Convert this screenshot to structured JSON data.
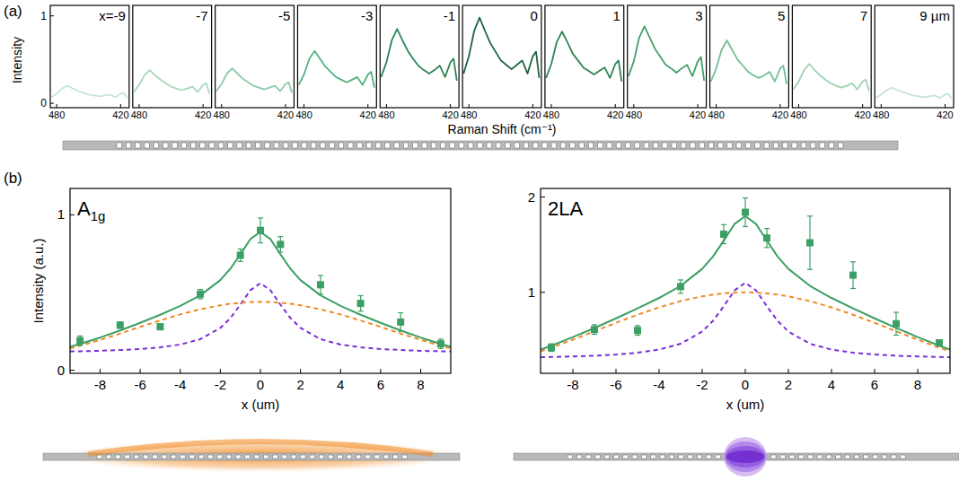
{
  "chart_data": [
    {
      "type": "line",
      "label": "(a)",
      "ylabel": "Intensity",
      "xlabel": "Raman Shift (cm⁻¹)",
      "xlim": [
        486,
        412
      ],
      "ylim": [
        -0.05,
        1.12
      ],
      "xticks": [
        480,
        420
      ],
      "yticks": [
        0,
        1
      ],
      "x": [
        485,
        480,
        475,
        470,
        465,
        460,
        455,
        450,
        445,
        440,
        435,
        430,
        425,
        420,
        417,
        414
      ],
      "series": [
        {
          "name": "x=-9",
          "color": "#c6e5d2",
          "values": [
            0.07,
            0.11,
            0.17,
            0.2,
            0.17,
            0.14,
            0.12,
            0.1,
            0.09,
            0.08,
            0.09,
            0.1,
            0.07,
            0.11,
            0.12,
            0.06
          ]
        },
        {
          "name": "-7",
          "color": "#a9d8bc",
          "values": [
            0.13,
            0.21,
            0.32,
            0.38,
            0.32,
            0.27,
            0.23,
            0.19,
            0.17,
            0.15,
            0.17,
            0.19,
            0.13,
            0.21,
            0.23,
            0.11
          ]
        },
        {
          "name": "-5",
          "color": "#8ccba6",
          "values": [
            0.14,
            0.22,
            0.34,
            0.4,
            0.34,
            0.28,
            0.24,
            0.2,
            0.18,
            0.16,
            0.18,
            0.2,
            0.14,
            0.22,
            0.24,
            0.12
          ]
        },
        {
          "name": "-3",
          "color": "#56b180",
          "values": [
            0.21,
            0.33,
            0.51,
            0.6,
            0.51,
            0.42,
            0.36,
            0.3,
            0.27,
            0.24,
            0.27,
            0.3,
            0.21,
            0.33,
            0.36,
            0.18
          ]
        },
        {
          "name": "-1",
          "color": "#2c8553",
          "values": [
            0.3,
            0.47,
            0.72,
            0.85,
            0.72,
            0.6,
            0.51,
            0.43,
            0.38,
            0.34,
            0.38,
            0.43,
            0.3,
            0.47,
            0.51,
            0.26
          ]
        },
        {
          "name": "0",
          "color": "#1d6440",
          "values": [
            0.34,
            0.54,
            0.83,
            0.98,
            0.83,
            0.69,
            0.59,
            0.49,
            0.44,
            0.39,
            0.44,
            0.49,
            0.34,
            0.54,
            0.59,
            0.29
          ]
        },
        {
          "name": "1",
          "color": "#2c8553",
          "values": [
            0.29,
            0.45,
            0.7,
            0.82,
            0.7,
            0.57,
            0.49,
            0.41,
            0.37,
            0.33,
            0.37,
            0.41,
            0.29,
            0.45,
            0.49,
            0.25
          ]
        },
        {
          "name": "3",
          "color": "#43a06b",
          "values": [
            0.31,
            0.48,
            0.75,
            0.88,
            0.75,
            0.62,
            0.53,
            0.44,
            0.4,
            0.35,
            0.4,
            0.44,
            0.31,
            0.48,
            0.53,
            0.26
          ]
        },
        {
          "name": "5",
          "color": "#72bf93",
          "values": [
            0.25,
            0.4,
            0.61,
            0.72,
            0.61,
            0.5,
            0.43,
            0.36,
            0.32,
            0.29,
            0.32,
            0.36,
            0.25,
            0.4,
            0.43,
            0.22
          ]
        },
        {
          "name": "7",
          "color": "#9dd2b3",
          "values": [
            0.16,
            0.25,
            0.38,
            0.45,
            0.38,
            0.32,
            0.27,
            0.23,
            0.2,
            0.18,
            0.2,
            0.23,
            0.16,
            0.25,
            0.27,
            0.14
          ]
        },
        {
          "name": "9 µm",
          "color": "#c6e5d2",
          "values": [
            0.06,
            0.1,
            0.15,
            0.18,
            0.15,
            0.13,
            0.11,
            0.09,
            0.08,
            0.07,
            0.08,
            0.09,
            0.06,
            0.1,
            0.11,
            0.05
          ]
        }
      ]
    },
    {
      "type": "scatter",
      "label": "(b)",
      "title": "A1g",
      "ylabel": "Intensity (a.u.)",
      "xlabel": "x (um)",
      "xlim": [
        -9.5,
        9.5
      ],
      "ylim": [
        -0.02,
        1.17
      ],
      "xticks": [
        -8,
        -6,
        -4,
        -2,
        0,
        2,
        4,
        6,
        8
      ],
      "yticks": [
        0,
        1
      ],
      "series": [
        {
          "type": "scatter",
          "marker": "square",
          "color": "#3c9f64",
          "x": [
            -9,
            -7,
            -5,
            -3,
            -1,
            0,
            1,
            3,
            5,
            7,
            9
          ],
          "values": [
            0.19,
            0.29,
            0.28,
            0.49,
            0.74,
            0.9,
            0.81,
            0.55,
            0.43,
            0.31,
            0.17
          ],
          "errors": [
            0.03,
            0.02,
            0.02,
            0.03,
            0.04,
            0.08,
            0.05,
            0.06,
            0.05,
            0.06,
            0.03
          ]
        },
        {
          "type": "line",
          "line_style": "solid",
          "color": "#3c9f64",
          "x": [
            -9.5,
            -9,
            -8,
            -7,
            -6,
            -5,
            -4,
            -3,
            -2,
            -1.5,
            -1,
            -0.5,
            0,
            0.5,
            1,
            1.5,
            2,
            3,
            4,
            5,
            6,
            7,
            8,
            9,
            9.5
          ],
          "values": [
            0.151,
            0.169,
            0.21,
            0.256,
            0.305,
            0.357,
            0.414,
            0.482,
            0.58,
            0.653,
            0.746,
            0.844,
            0.89,
            0.844,
            0.746,
            0.653,
            0.58,
            0.482,
            0.414,
            0.357,
            0.305,
            0.256,
            0.21,
            0.169,
            0.151
          ]
        },
        {
          "type": "line",
          "line_style": "dashed",
          "color": "#f08a24",
          "x": [
            -9.5,
            -9,
            -8,
            -7,
            -6,
            -5,
            -4,
            -3,
            -2,
            -1.5,
            -1,
            -0.5,
            0,
            0.5,
            1,
            1.5,
            2,
            3,
            4,
            5,
            6,
            7,
            8,
            9,
            9.5
          ],
          "values": [
            0.14,
            0.157,
            0.195,
            0.236,
            0.279,
            0.32,
            0.359,
            0.392,
            0.418,
            0.428,
            0.434,
            0.439,
            0.44,
            0.439,
            0.434,
            0.428,
            0.418,
            0.392,
            0.359,
            0.32,
            0.279,
            0.236,
            0.195,
            0.157,
            0.14
          ]
        },
        {
          "type": "line",
          "line_style": "dashed",
          "color": "#7b2fd6",
          "x": [
            -9.5,
            -9,
            -8,
            -7,
            -6,
            -5,
            -4,
            -3,
            -2,
            -1.5,
            -1,
            -0.5,
            0,
            0.5,
            1,
            1.5,
            2,
            3,
            4,
            5,
            6,
            7,
            8,
            9,
            9.5
          ],
          "values": [
            0.121,
            0.122,
            0.125,
            0.13,
            0.136,
            0.147,
            0.165,
            0.2,
            0.272,
            0.335,
            0.422,
            0.515,
            0.56,
            0.515,
            0.422,
            0.335,
            0.272,
            0.2,
            0.165,
            0.147,
            0.136,
            0.13,
            0.125,
            0.122,
            0.121
          ]
        }
      ]
    },
    {
      "type": "scatter",
      "title": "2LA",
      "xlabel": "x (um)",
      "xlim": [
        -9.5,
        9.5
      ],
      "ylim": [
        0.15,
        2.09
      ],
      "xticks": [
        -8,
        -6,
        -4,
        -2,
        0,
        2,
        4,
        6,
        8
      ],
      "yticks": [
        1,
        2
      ],
      "series": [
        {
          "type": "scatter",
          "marker": "square",
          "color": "#3c9f64",
          "x": [
            -9,
            -7,
            -5,
            -3,
            -1,
            0,
            1,
            3,
            5,
            7,
            9
          ],
          "values": [
            0.42,
            0.61,
            0.6,
            1.06,
            1.61,
            1.84,
            1.57,
            1.52,
            1.18,
            0.67,
            0.47
          ],
          "errors": [
            0.04,
            0.05,
            0.05,
            0.07,
            0.1,
            0.15,
            0.1,
            0.28,
            0.14,
            0.12,
            0.03
          ]
        },
        {
          "type": "line",
          "line_style": "solid",
          "color": "#3c9f64",
          "x": [
            -9.5,
            -9,
            -8,
            -7,
            -6,
            -5,
            -4,
            -3,
            -2,
            -1.5,
            -1,
            -0.5,
            0,
            0.5,
            1,
            1.5,
            2,
            3,
            4,
            5,
            6,
            7,
            8,
            9,
            9.5
          ],
          "values": [
            0.399,
            0.44,
            0.53,
            0.626,
            0.727,
            0.831,
            0.941,
            1.068,
            1.246,
            1.376,
            1.543,
            1.717,
            1.8,
            1.717,
            1.543,
            1.376,
            1.246,
            1.068,
            0.941,
            0.831,
            0.727,
            0.626,
            0.53,
            0.44,
            0.399
          ]
        },
        {
          "type": "line",
          "line_style": "dashed",
          "color": "#f08a24",
          "x": [
            -9.5,
            -9,
            -8,
            -7,
            -6,
            -5,
            -4,
            -3,
            -2,
            -1.5,
            -1,
            -0.5,
            0,
            0.5,
            1,
            1.5,
            2,
            3,
            4,
            5,
            6,
            7,
            8,
            9,
            9.5
          ],
          "values": [
            0.38,
            0.419,
            0.503,
            0.591,
            0.68,
            0.765,
            0.842,
            0.908,
            0.958,
            0.976,
            0.989,
            0.997,
            1.0,
            0.997,
            0.989,
            0.976,
            0.958,
            0.908,
            0.842,
            0.765,
            0.68,
            0.591,
            0.503,
            0.419,
            0.38
          ]
        },
        {
          "type": "line",
          "line_style": "dashed",
          "color": "#7b2fd6",
          "x": [
            -9.5,
            -9,
            -8,
            -7,
            -6,
            -5,
            -4,
            -3,
            -2,
            -1.5,
            -1,
            -0.5,
            0,
            0.5,
            1,
            1.5,
            2,
            3,
            4,
            5,
            6,
            7,
            8,
            9,
            9.5
          ],
          "values": [
            0.319,
            0.321,
            0.327,
            0.335,
            0.347,
            0.366,
            0.399,
            0.46,
            0.588,
            0.7,
            0.854,
            1.02,
            1.1,
            1.02,
            0.854,
            0.7,
            0.588,
            0.46,
            0.399,
            0.366,
            0.347,
            0.335,
            0.327,
            0.321,
            0.319
          ]
        }
      ]
    }
  ]
}
